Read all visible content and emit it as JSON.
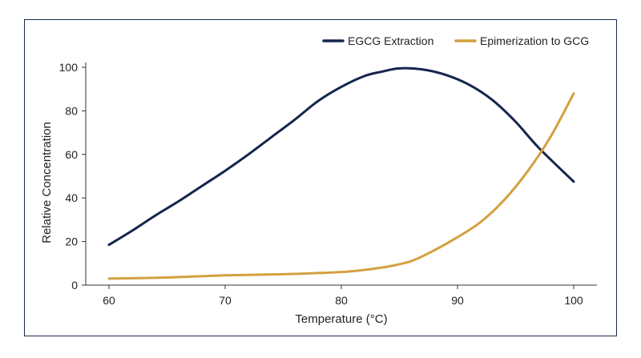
{
  "chart_data": {
    "type": "line",
    "xlabel": "Temperature (°C)",
    "ylabel": "Relative Concentration",
    "xlim": [
      58,
      102
    ],
    "ylim": [
      0,
      100
    ],
    "xticks": [
      60,
      70,
      80,
      90,
      100
    ],
    "yticks": [
      0,
      20,
      40,
      60,
      80,
      100
    ],
    "grid": false,
    "legend_position": "top-right",
    "series": [
      {
        "name": "EGCG Extraction",
        "color": "#14254d",
        "x": [
          60,
          62,
          64,
          66,
          68,
          70,
          72,
          74,
          76,
          78,
          80,
          82,
          83.5,
          85,
          87,
          89,
          91,
          93,
          95,
          97,
          100
        ],
        "y": [
          18.5,
          25,
          32,
          38.5,
          45.5,
          52.5,
          60,
          68,
          76,
          84.5,
          91,
          96,
          98,
          99.5,
          99,
          96.5,
          92,
          85,
          75,
          63,
          47.5
        ]
      },
      {
        "name": "Epimerization to GCG",
        "color": "#d4a040",
        "x": [
          60,
          65,
          70,
          75,
          80,
          82,
          84,
          86,
          88,
          90,
          92,
          94,
          96,
          98,
          100
        ],
        "y": [
          3,
          3.5,
          4.5,
          5,
          6,
          7,
          8.5,
          11,
          16,
          22,
          29,
          39,
          52,
          68,
          88
        ]
      }
    ]
  }
}
